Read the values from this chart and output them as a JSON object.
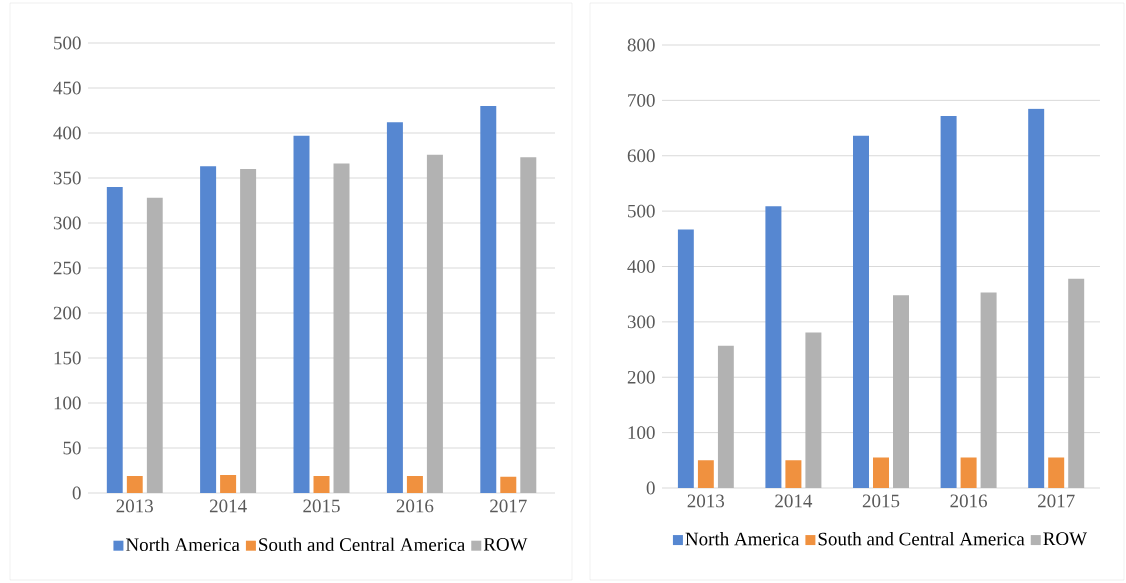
{
  "chart_data": [
    {
      "type": "bar",
      "categories": [
        "2013",
        "2014",
        "2015",
        "2016",
        "2017"
      ],
      "ylim": [
        0,
        500
      ],
      "yticks": [
        0,
        50,
        100,
        150,
        200,
        250,
        300,
        350,
        400,
        450,
        500
      ],
      "grid": "y",
      "legend": "bottom",
      "series": [
        {
          "name": "North America",
          "color": "#5687d1",
          "values": [
            340,
            363,
            397,
            412,
            430
          ]
        },
        {
          "name": "South and Central America",
          "color": "#f0913f",
          "values": [
            19,
            20,
            19,
            19,
            18
          ]
        },
        {
          "name": "ROW",
          "color": "#b2b2b2",
          "values": [
            328,
            360,
            366,
            376,
            373
          ]
        }
      ]
    },
    {
      "type": "bar",
      "categories": [
        "2013",
        "2014",
        "2015",
        "2016",
        "2017"
      ],
      "ylim": [
        0,
        800
      ],
      "yticks": [
        0,
        100,
        200,
        300,
        400,
        500,
        600,
        700,
        800
      ],
      "grid": "y",
      "legend": "bottom",
      "series": [
        {
          "name": "North America",
          "color": "#5687d1",
          "values": [
            467,
            509,
            636,
            672,
            685
          ]
        },
        {
          "name": "South and Central America",
          "color": "#f0913f",
          "values": [
            50,
            50,
            55,
            55,
            55
          ]
        },
        {
          "name": "ROW",
          "color": "#b2b2b2",
          "values": [
            257,
            281,
            348,
            353,
            378
          ]
        }
      ]
    }
  ]
}
